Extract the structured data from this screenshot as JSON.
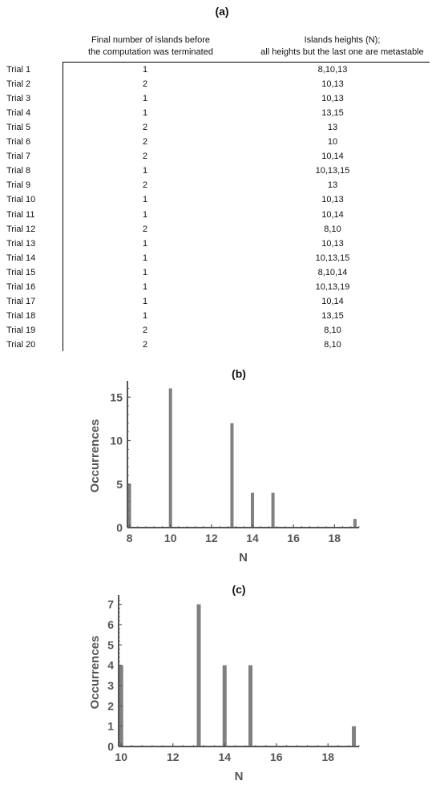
{
  "table": {
    "title": "(a)",
    "header_col1": [
      "Final number of islands before",
      "the computation was terminated"
    ],
    "header_col2": [
      "Islands heights (N);",
      "all heights but the last one are metastable"
    ],
    "rows": [
      [
        "Trial 1",
        "1",
        "8,10,13"
      ],
      [
        "Trial 2",
        "2",
        "10,13"
      ],
      [
        "Trial 3",
        "1",
        "10,13"
      ],
      [
        "Trial 4",
        "1",
        "13,15"
      ],
      [
        "Trial 5",
        "2",
        "13"
      ],
      [
        "Trial 6",
        "2",
        "10"
      ],
      [
        "Trial 7",
        "2",
        "10,14"
      ],
      [
        "Trial 8",
        "1",
        "10,13,15"
      ],
      [
        "Trial 9",
        "2",
        "13"
      ],
      [
        "Trial 10",
        "1",
        "10,13"
      ],
      [
        "Trial 11",
        "1",
        "10,14"
      ],
      [
        "Trial 12",
        "2",
        "8,10"
      ],
      [
        "Trial 13",
        "1",
        "10,13"
      ],
      [
        "Trial 14",
        "1",
        "10,13,15"
      ],
      [
        "Trial 15",
        "1",
        "8,10,14"
      ],
      [
        "Trial 16",
        "1",
        "10,13,19"
      ],
      [
        "Trial 17",
        "1",
        "10,14"
      ],
      [
        "Trial 18",
        "1",
        "13,15"
      ],
      [
        "Trial 19",
        "2",
        "8,10"
      ],
      [
        "Trial 20",
        "2",
        "8,10"
      ]
    ]
  },
  "chart_data": [
    {
      "type": "bar",
      "title": "(b)",
      "xlabel": "N",
      "ylabel": "Occurrences",
      "x": [
        8,
        10,
        13,
        14,
        15,
        19
      ],
      "values": [
        5,
        16,
        12,
        4,
        4,
        1
      ],
      "xlim": [
        7.9,
        19.2
      ],
      "ylim": [
        0,
        16.5
      ],
      "xticks": [
        8,
        10,
        12,
        14,
        16,
        18
      ],
      "yticks": [
        0,
        5,
        10,
        15
      ],
      "bar_color": "#808080",
      "axis_color": "#555555"
    },
    {
      "type": "bar",
      "title": "(c)",
      "xlabel": "N",
      "ylabel": "Occurrences",
      "x": [
        10,
        13,
        14,
        15,
        19
      ],
      "values": [
        4,
        7,
        4,
        4,
        1
      ],
      "xlim": [
        9.9,
        19.2
      ],
      "ylim": [
        0,
        7.3
      ],
      "xticks": [
        10,
        12,
        14,
        16,
        18
      ],
      "yticks": [
        0,
        1,
        2,
        3,
        4,
        5,
        6,
        7
      ],
      "bar_color": "#808080",
      "axis_color": "#555555"
    }
  ]
}
